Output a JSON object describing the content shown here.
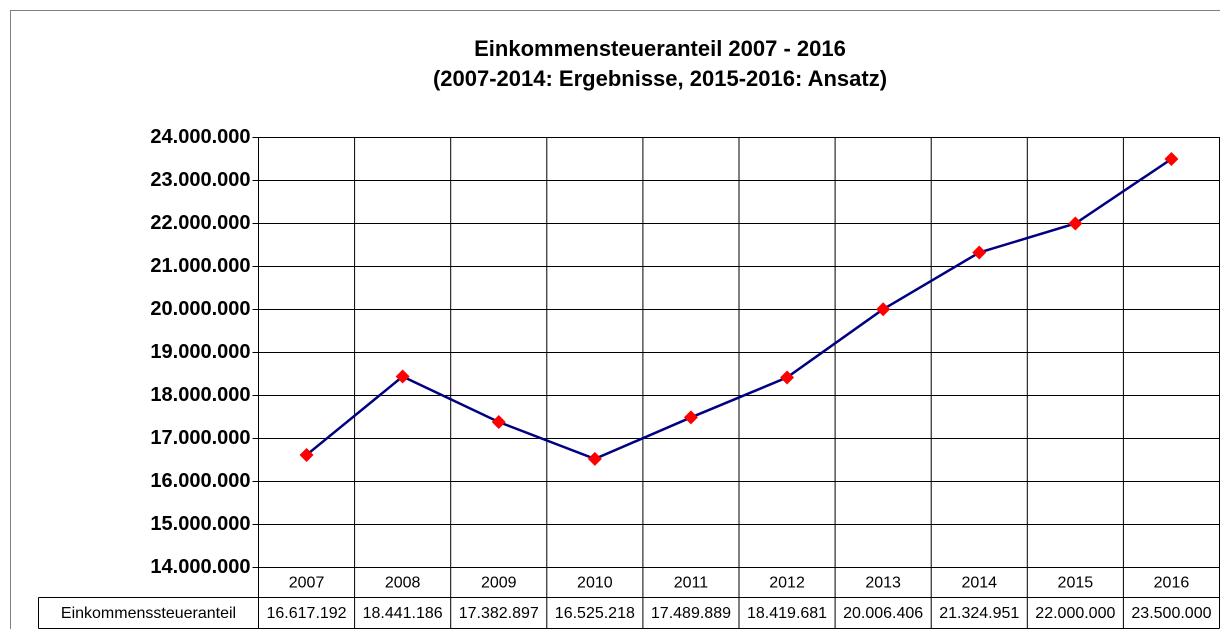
{
  "chart_data": {
    "type": "line",
    "title": "Einkommensteueranteil 2007 - 2016",
    "subtitle": "(2007-2014: Ergebnisse, 2015-2016: Ansatz)",
    "categories": [
      "2007",
      "2008",
      "2009",
      "2010",
      "2011",
      "2012",
      "2013",
      "2014",
      "2015",
      "2016"
    ],
    "series": [
      {
        "name": "Einkommenssteueranteil",
        "color": "#000080",
        "marker_color": "#ff0000",
        "values": [
          16617192,
          18441186,
          17382897,
          16525218,
          17489889,
          18419681,
          20006406,
          21324951,
          22000000,
          23500000
        ],
        "value_labels": [
          "16.617.192",
          "18.441.186",
          "17.382.897",
          "16.525.218",
          "17.489.889",
          "18.419.681",
          "20.006.406",
          "21.324.951",
          "22.000.000",
          "23.500.000"
        ]
      }
    ],
    "ylim": [
      14000000,
      24000000
    ],
    "yticks": [
      {
        "value": 14000000,
        "label": "14.000.000"
      },
      {
        "value": 15000000,
        "label": "15.000.000"
      },
      {
        "value": 16000000,
        "label": "16.000.000"
      },
      {
        "value": 17000000,
        "label": "17.000.000"
      },
      {
        "value": 18000000,
        "label": "18.000.000"
      },
      {
        "value": 19000000,
        "label": "19.000.000"
      },
      {
        "value": 20000000,
        "label": "20.000.000"
      },
      {
        "value": 21000000,
        "label": "21.000.000"
      },
      {
        "value": 22000000,
        "label": "22.000.000"
      },
      {
        "value": 23000000,
        "label": "23.000.000"
      },
      {
        "value": 24000000,
        "label": "24.000.000"
      }
    ],
    "grid": true
  }
}
